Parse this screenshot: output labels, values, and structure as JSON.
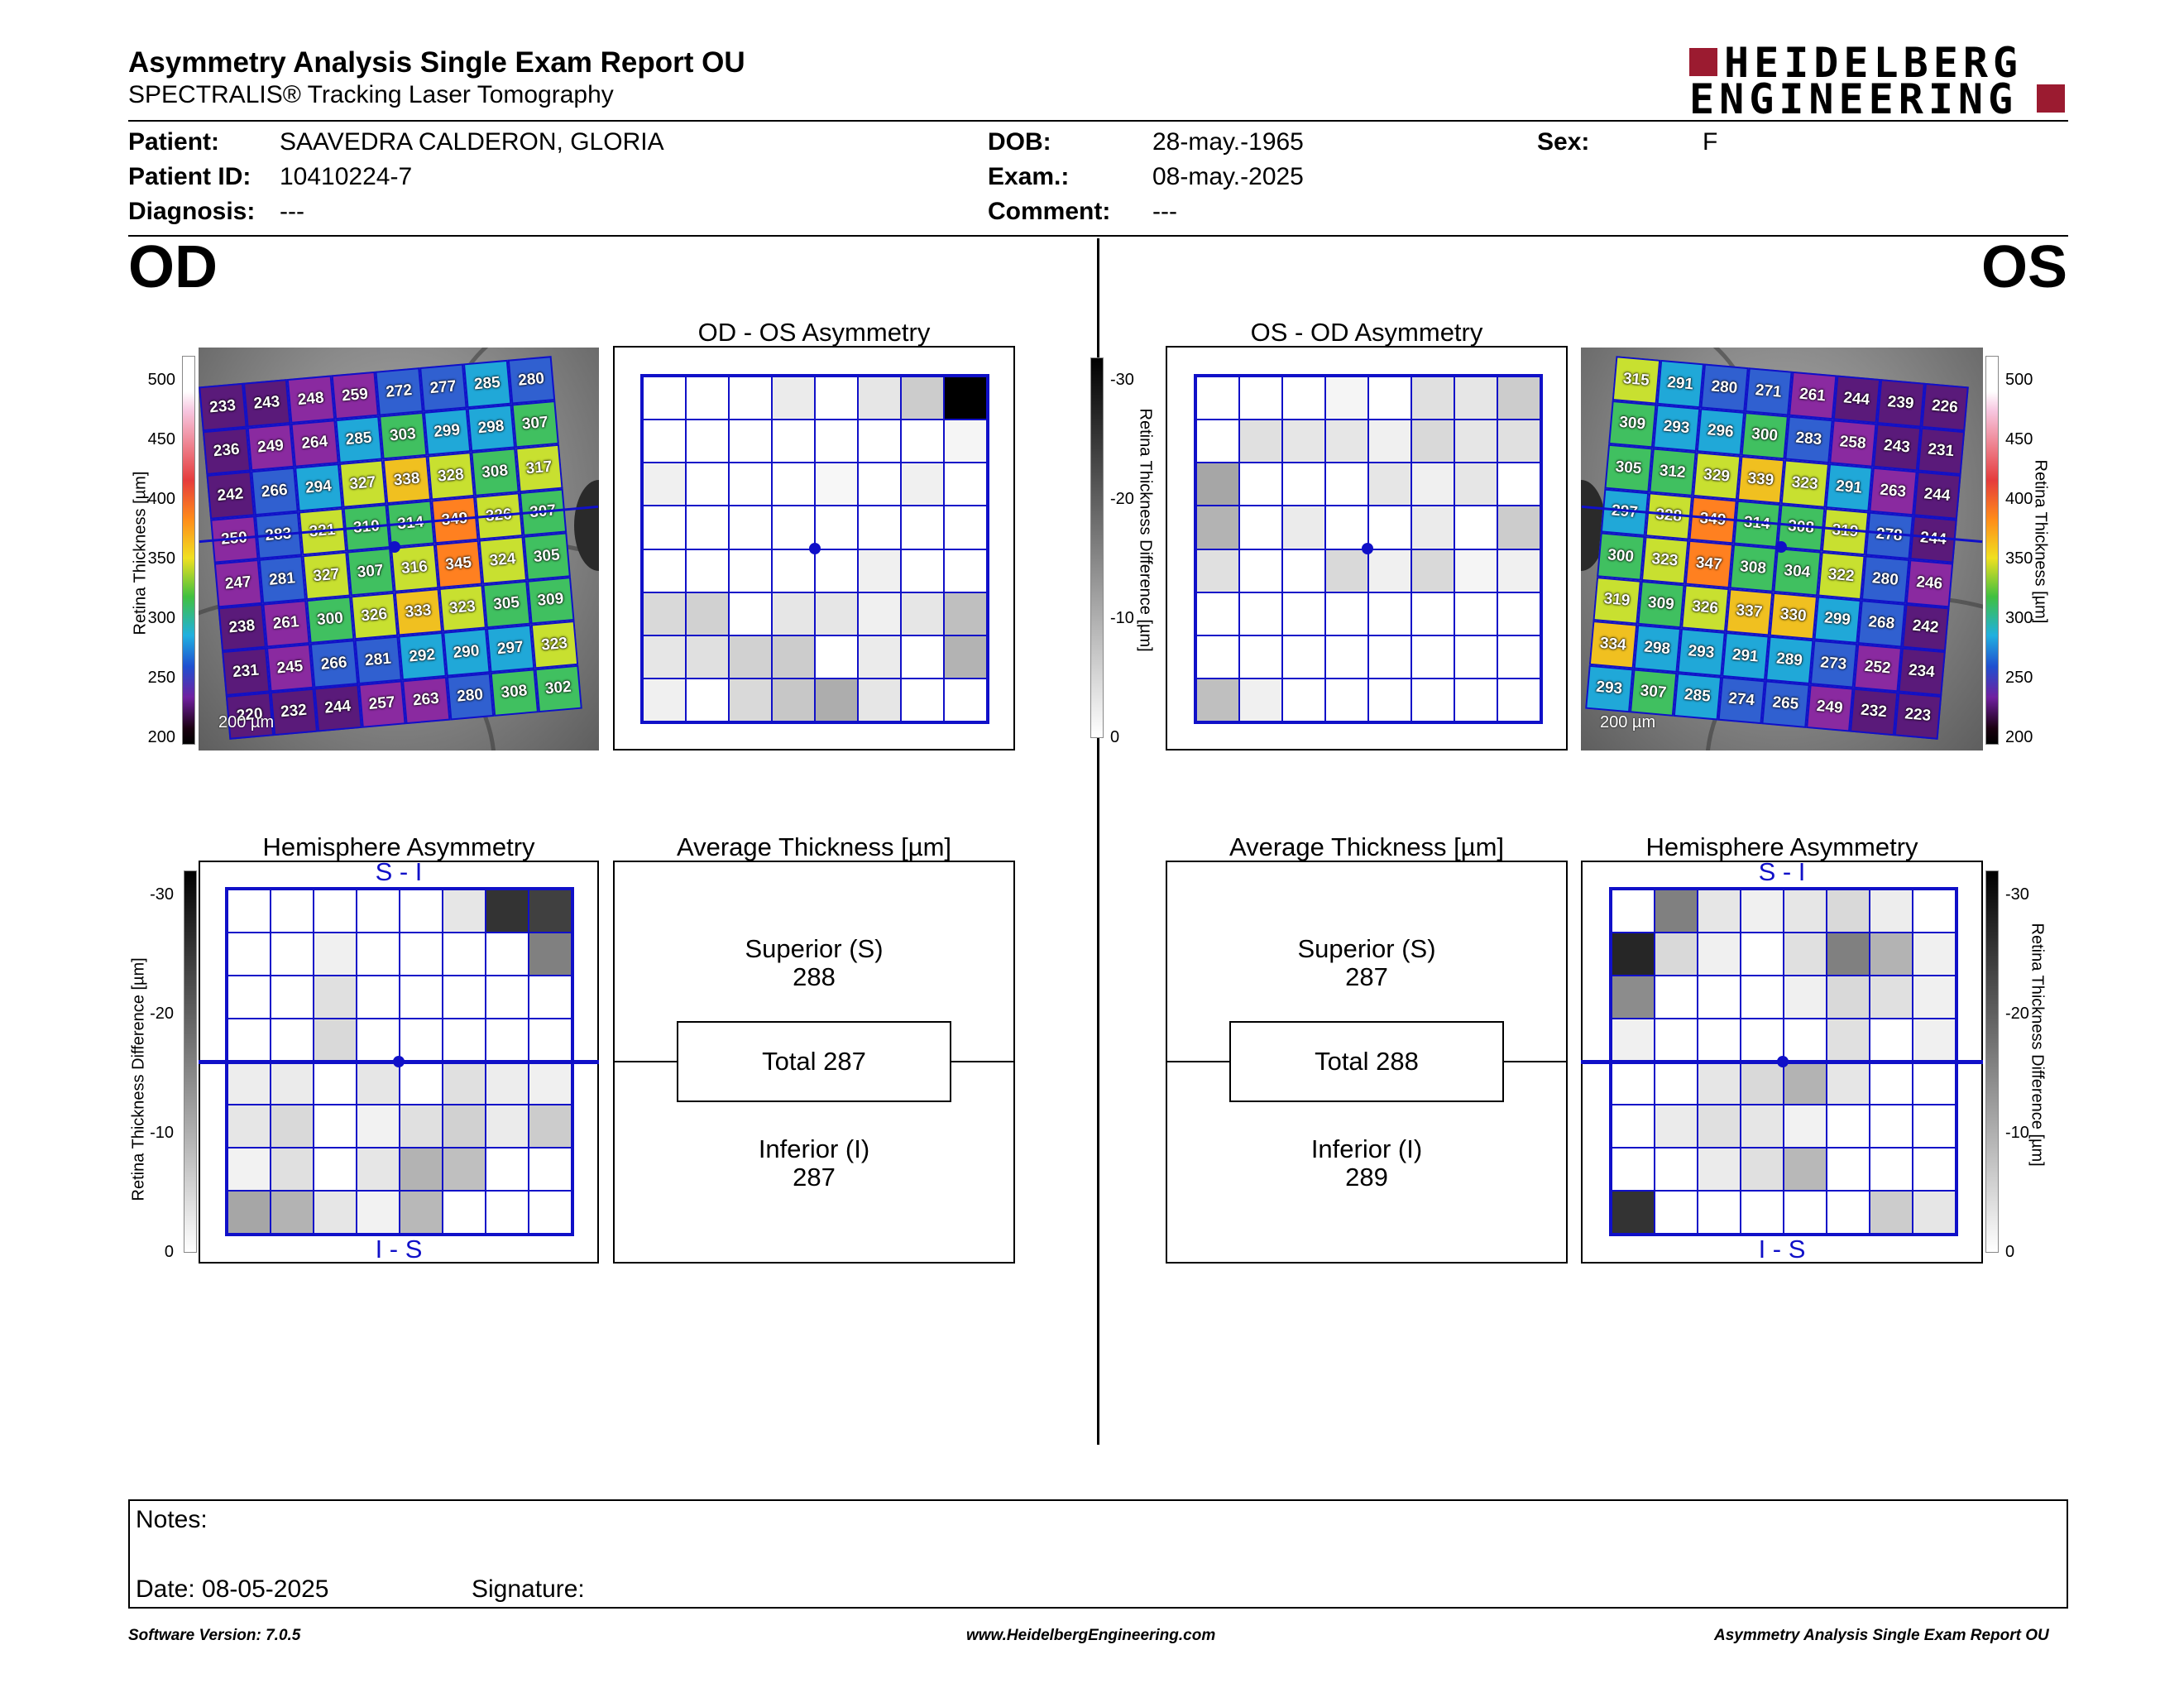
{
  "header": {
    "title": "Asymmetry Analysis Single Exam Report OU",
    "subtitle": "SPECTRALIS® Tracking Laser Tomography",
    "logo_line1": "HEIDELBERG",
    "logo_line2": "ENGINEERING",
    "brand_color": "#9b1b30"
  },
  "patient": {
    "patient_label": "Patient:",
    "patient_value": "SAAVEDRA CALDERON, GLORIA",
    "id_label": "Patient ID:",
    "id_value": "10410224-7",
    "diagnosis_label": "Diagnosis:",
    "diagnosis_value": "---",
    "dob_label": "DOB:",
    "dob_value": "28-may.-1965",
    "exam_label": "Exam.:",
    "exam_value": "08-may.-2025",
    "comment_label": "Comment:",
    "comment_value": "---",
    "sex_label": "Sex:",
    "sex_value": "F"
  },
  "od": {
    "eye_label": "OD",
    "asym_title": "OD - OS Asymmetry",
    "hemi_title": "Hemisphere Asymmetry",
    "avg_title": "Average Thickness [µm]",
    "superior_label": "Superior (S)",
    "superior_value": "288",
    "total_label": "Total 287",
    "inferior_label": "Inferior (I)",
    "inferior_value": "287",
    "si_top": "S - I",
    "si_bottom": "I - S",
    "scalebar": "200 µm",
    "thickness": [
      [
        "233",
        "243",
        "248",
        "259",
        "272",
        "277",
        "285",
        "280"
      ],
      [
        "236",
        "249",
        "264",
        "285",
        "303",
        "299",
        "298",
        "307"
      ],
      [
        "242",
        "266",
        "294",
        "327",
        "338",
        "328",
        "308",
        "317"
      ],
      [
        "250",
        "283",
        "321",
        "310",
        "314",
        "349",
        "326",
        "307"
      ],
      [
        "247",
        "281",
        "327",
        "307",
        "316",
        "345",
        "324",
        "305"
      ],
      [
        "238",
        "261",
        "300",
        "326",
        "333",
        "323",
        "305",
        "309"
      ],
      [
        "231",
        "245",
        "266",
        "281",
        "292",
        "290",
        "297",
        "323"
      ],
      [
        "220",
        "232",
        "244",
        "257",
        "263",
        "280",
        "308",
        "302"
      ]
    ],
    "asym_levels": [
      [
        0,
        0,
        0,
        0.08,
        0,
        0.1,
        0.2,
        1
      ],
      [
        0,
        0,
        0,
        0,
        0,
        0,
        0,
        0.04
      ],
      [
        0.06,
        0,
        0,
        0,
        0.03,
        0,
        0.06,
        0
      ],
      [
        0,
        0,
        0,
        0,
        0,
        0,
        0,
        0
      ],
      [
        0,
        0,
        0,
        0,
        0,
        0.06,
        0,
        0
      ],
      [
        0.15,
        0.18,
        0,
        0.1,
        0.1,
        0.06,
        0.1,
        0.25
      ],
      [
        0.1,
        0.12,
        0.18,
        0.2,
        0,
        0.08,
        0,
        0.3
      ],
      [
        0.06,
        0,
        0.15,
        0.22,
        0.32,
        0.1,
        0,
        0
      ]
    ],
    "hemi_levels": [
      [
        0,
        0,
        0,
        0,
        0,
        0.1,
        0.8,
        0.75
      ],
      [
        0,
        0,
        0.06,
        0,
        0,
        0,
        0,
        0.5
      ],
      [
        0,
        0,
        0.12,
        0,
        0,
        0,
        0,
        0
      ],
      [
        0,
        0,
        0.15,
        0,
        0,
        0,
        0,
        0
      ],
      [
        0.07,
        0.08,
        0,
        0.1,
        0,
        0.12,
        0.07,
        0.06
      ],
      [
        0.1,
        0.15,
        0,
        0.05,
        0.12,
        0.18,
        0.08,
        0.2
      ],
      [
        0.05,
        0.12,
        0,
        0.1,
        0.3,
        0.25,
        0,
        0
      ],
      [
        0.35,
        0.3,
        0.1,
        0.05,
        0.28,
        0,
        0,
        0
      ]
    ]
  },
  "os": {
    "eye_label": "OS",
    "asym_title": "OS - OD Asymmetry",
    "hemi_title": "Hemisphere Asymmetry",
    "avg_title": "Average Thickness [µm]",
    "superior_label": "Superior (S)",
    "superior_value": "287",
    "total_label": "Total 288",
    "inferior_label": "Inferior (I)",
    "inferior_value": "289",
    "si_top": "S - I",
    "si_bottom": "I - S",
    "scalebar": "200 µm",
    "thickness": [
      [
        "315",
        "291",
        "280",
        "271",
        "261",
        "244",
        "239",
        "226"
      ],
      [
        "309",
        "293",
        "296",
        "300",
        "283",
        "258",
        "243",
        "231"
      ],
      [
        "305",
        "312",
        "329",
        "339",
        "323",
        "291",
        "263",
        "244"
      ],
      [
        "297",
        "328",
        "349",
        "314",
        "308",
        "319",
        "278",
        "244"
      ],
      [
        "300",
        "323",
        "347",
        "308",
        "304",
        "322",
        "280",
        "246"
      ],
      [
        "319",
        "309",
        "326",
        "337",
        "330",
        "299",
        "268",
        "242"
      ],
      [
        "334",
        "298",
        "293",
        "291",
        "289",
        "273",
        "252",
        "234"
      ],
      [
        "293",
        "307",
        "285",
        "274",
        "265",
        "249",
        "232",
        "223"
      ]
    ],
    "asym_levels": [
      [
        0,
        0,
        0,
        0.04,
        0,
        0.12,
        0.1,
        0.2
      ],
      [
        0,
        0.12,
        0.1,
        0.1,
        0.06,
        0.15,
        0.1,
        0.12
      ],
      [
        0.35,
        0,
        0,
        0,
        0.1,
        0.06,
        0.1,
        0
      ],
      [
        0.3,
        0,
        0.08,
        0,
        0,
        0.08,
        0,
        0.2
      ],
      [
        0.12,
        0,
        0,
        0.15,
        0.06,
        0.15,
        0.04,
        0.06
      ],
      [
        0,
        0,
        0,
        0,
        0,
        0,
        0,
        0
      ],
      [
        0,
        0,
        0,
        0,
        0,
        0,
        0,
        0
      ],
      [
        0.25,
        0.06,
        0,
        0,
        0,
        0,
        0,
        0
      ]
    ],
    "hemi_levels": [
      [
        0,
        0.5,
        0.1,
        0.06,
        0.1,
        0.15,
        0.07,
        0
      ],
      [
        0.85,
        0.15,
        0.06,
        0,
        0.12,
        0.5,
        0.3,
        0.06
      ],
      [
        0.45,
        0,
        0,
        0,
        0.06,
        0.15,
        0.12,
        0.06
      ],
      [
        0.06,
        0,
        0,
        0,
        0,
        0.12,
        0,
        0.06
      ],
      [
        0,
        0,
        0.1,
        0.15,
        0.3,
        0.1,
        0,
        0
      ],
      [
        0,
        0.08,
        0.12,
        0.1,
        0.05,
        0,
        0,
        0
      ],
      [
        0,
        0,
        0.08,
        0.12,
        0.28,
        0,
        0,
        0
      ],
      [
        0.8,
        0,
        0,
        0,
        0,
        0,
        0.2,
        0.1
      ]
    ]
  },
  "scales": {
    "thickness_label": "Retina Thickness [µm]",
    "thickness_ticks": [
      "500",
      "450",
      "400",
      "350",
      "300",
      "250",
      "200"
    ],
    "diff_label": "Retina Thickness Difference [µm]",
    "diff_ticks": [
      "-30",
      "-20",
      "-10",
      "0"
    ]
  },
  "notes": {
    "notes_label": "Notes:",
    "date_label": "Date: 08-05-2025",
    "signature_label": "Signature:"
  },
  "footer": {
    "version": "Software Version: 7.0.5",
    "website": "www.HeidelbergEngineering.com",
    "report": "Asymmetry Analysis Single Exam Report OU"
  }
}
